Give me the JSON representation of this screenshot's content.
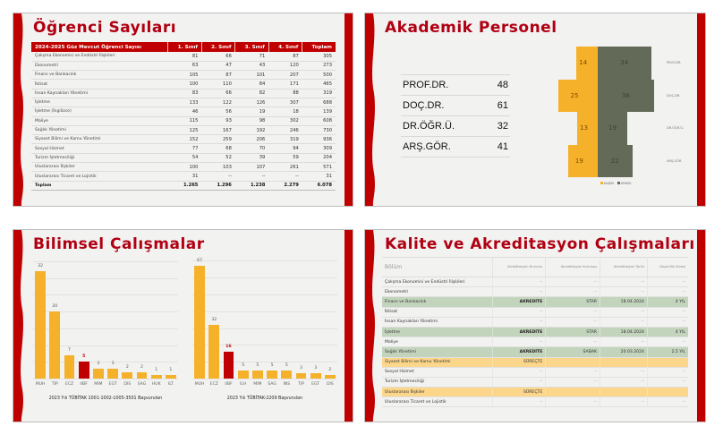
{
  "colors": {
    "accent": "#c00000",
    "title": "#b00012",
    "kadin": "#f6b12b",
    "erkek": "#636a58",
    "bar": "#f6b12b",
    "bar_highlight": "#c00000",
    "akredite_row": "#c3d4bd",
    "surecte_row": "#fcd68a"
  },
  "slide1": {
    "title": "Öğrenci Sayıları",
    "headers": [
      "2024-2025 Güz Mevcut Öğrenci Sayısı",
      "1. Sınıf",
      "2. Sınıf",
      "3. Sınıf",
      "4. Sınıf",
      "Toplam"
    ],
    "rows": [
      [
        "Çalışma Ekonomisi ve Endüstri İlişkileri",
        "81",
        "66",
        "71",
        "87",
        "305"
      ],
      [
        "Ekonometri",
        "63",
        "47",
        "43",
        "120",
        "273"
      ],
      [
        "Finans ve Bankacılık",
        "105",
        "87",
        "101",
        "207",
        "500"
      ],
      [
        "İktisat",
        "100",
        "110",
        "84",
        "171",
        "465"
      ],
      [
        "İnsan Kaynakları Yönetimi",
        "83",
        "66",
        "82",
        "88",
        "319"
      ],
      [
        "İşletme",
        "133",
        "122",
        "126",
        "307",
        "688"
      ],
      [
        "İşletme (İngilizce)",
        "46",
        "56",
        "19",
        "18",
        "139"
      ],
      [
        "Maliye",
        "115",
        "93",
        "98",
        "302",
        "608"
      ],
      [
        "Sağlık Yönetimi",
        "125",
        "167",
        "192",
        "246",
        "730"
      ],
      [
        "Siyaset Bilimi ve Kamu Yönetimi",
        "152",
        "259",
        "206",
        "319",
        "936"
      ],
      [
        "Sosyal Hizmet",
        "77",
        "68",
        "70",
        "94",
        "309"
      ],
      [
        "Turizm İşletmeciliği",
        "54",
        "52",
        "39",
        "59",
        "204"
      ],
      [
        "Uluslararası İlişkiler",
        "100",
        "103",
        "107",
        "261",
        "571"
      ],
      [
        "Uluslararası Ticaret ve Lojistik",
        "31",
        "--",
        "--",
        "--",
        "31"
      ]
    ],
    "total": [
      "Toplam",
      "1.265",
      "1.296",
      "1.238",
      "2.279",
      "6.078"
    ]
  },
  "slide2": {
    "title": "Akademik Personel",
    "staff": [
      {
        "label": "PROF.DR.",
        "value": "48"
      },
      {
        "label": "DOÇ.DR.",
        "value": "61"
      },
      {
        "label": "DR.ÖĞR.Ü.",
        "value": "32"
      },
      {
        "label": "ARŞ.GÖR.",
        "value": "41"
      }
    ],
    "chart_data": {
      "type": "bar",
      "orientation": "horizontal-pyramid",
      "categories": [
        "PROF.DR.",
        "DOÇ.DR.",
        "DR.ÖĞR.Ü.",
        "ARŞ.GÖR."
      ],
      "series": [
        {
          "name": "KADIN",
          "values": [
            14,
            25,
            13,
            19
          ]
        },
        {
          "name": "ERKEK",
          "values": [
            34,
            36,
            19,
            22
          ]
        }
      ],
      "legend": [
        "KADIN",
        "ERKEK"
      ],
      "legend_position": "bottom"
    }
  },
  "slide3": {
    "title": "Bilimsel Çalışmalar",
    "chart_data": [
      {
        "type": "bar",
        "title": "2023 Yılı TÜBİTAK 1001-1002-1005-3501 Başvuruları",
        "categories": [
          "MUH",
          "TIP",
          "ECZ",
          "IIBF",
          "MIM",
          "EGT",
          "DIS",
          "SAG",
          "HUK",
          "ILT"
        ],
        "values": [
          32,
          20,
          7,
          5,
          3,
          3,
          2,
          2,
          1,
          1
        ],
        "highlight": "IIBF",
        "ylim": [
          0,
          35
        ],
        "grid": true
      },
      {
        "type": "bar",
        "title": "2023 Yılı TÜBİTAK-2209 Başvuruları",
        "categories": [
          "MUH",
          "ECZ",
          "IIBF",
          "ILH",
          "MIM",
          "SAG",
          "INS",
          "TIP",
          "EGT",
          "DIS"
        ],
        "values": [
          67,
          32,
          16,
          5,
          5,
          5,
          5,
          3,
          3,
          2
        ],
        "highlight": "IIBF",
        "ylim": [
          0,
          70
        ],
        "grid": true
      }
    ]
  },
  "slide4": {
    "title": "Kalite ve Akreditasyon Çalışmaları",
    "headers": [
      "Bölüm",
      "Akreditasyon Durumu",
      "Akreditasyon Kuruluşu",
      "Akreditasyon Tarihi",
      "Geçerlilik Süresi"
    ],
    "rows": [
      {
        "cells": [
          "Çalışma Ekonomisi ve Endüstri İlişkileri",
          "--",
          "--",
          "--",
          "--"
        ],
        "status": "none"
      },
      {
        "cells": [
          "Ekonometri",
          "--",
          "--",
          "--",
          "--"
        ],
        "status": "none"
      },
      {
        "cells": [
          "Finans ve Bankacılık",
          "AKREDİTE",
          "STAR",
          "18.04.2024",
          "4 YIL"
        ],
        "status": "akredite"
      },
      {
        "cells": [
          "İktisat",
          "--",
          "--",
          "--",
          "--"
        ],
        "status": "none"
      },
      {
        "cells": [
          "İnsan Kaynakları Yönetimi",
          "--",
          "--",
          "--",
          "--"
        ],
        "status": "none"
      },
      {
        "cells": [
          "İşletme",
          "AKREDİTE",
          "STAR",
          "18.04.2024",
          "4 YIL"
        ],
        "status": "akredite"
      },
      {
        "cells": [
          "Maliye",
          "--",
          "--",
          "--",
          "--"
        ],
        "status": "none"
      },
      {
        "cells": [
          "Sağlık Yönetimi",
          "AKREDİTE",
          "SABAK",
          "20.03.2024",
          "2,5 YIL"
        ],
        "status": "akredite"
      },
      {
        "cells": [
          "Siyaset Bilimi ve Kamu Yönetimi",
          "SÜREÇTE",
          "",
          "",
          ""
        ],
        "status": "surecte"
      },
      {
        "cells": [
          "Sosyal Hizmet",
          "--",
          "--",
          "--",
          "--"
        ],
        "status": "none"
      },
      {
        "cells": [
          "Turizm İşletmeciliği",
          "--",
          "--",
          "--",
          "--"
        ],
        "status": "none"
      },
      {
        "cells": [
          "Uluslararası İlişkiler",
          "SÜREÇTE",
          "",
          "",
          ""
        ],
        "status": "surecte"
      },
      {
        "cells": [
          "Uluslararası Ticaret ve Lojistik",
          "--",
          "--",
          "--",
          "--"
        ],
        "status": "none"
      }
    ]
  }
}
